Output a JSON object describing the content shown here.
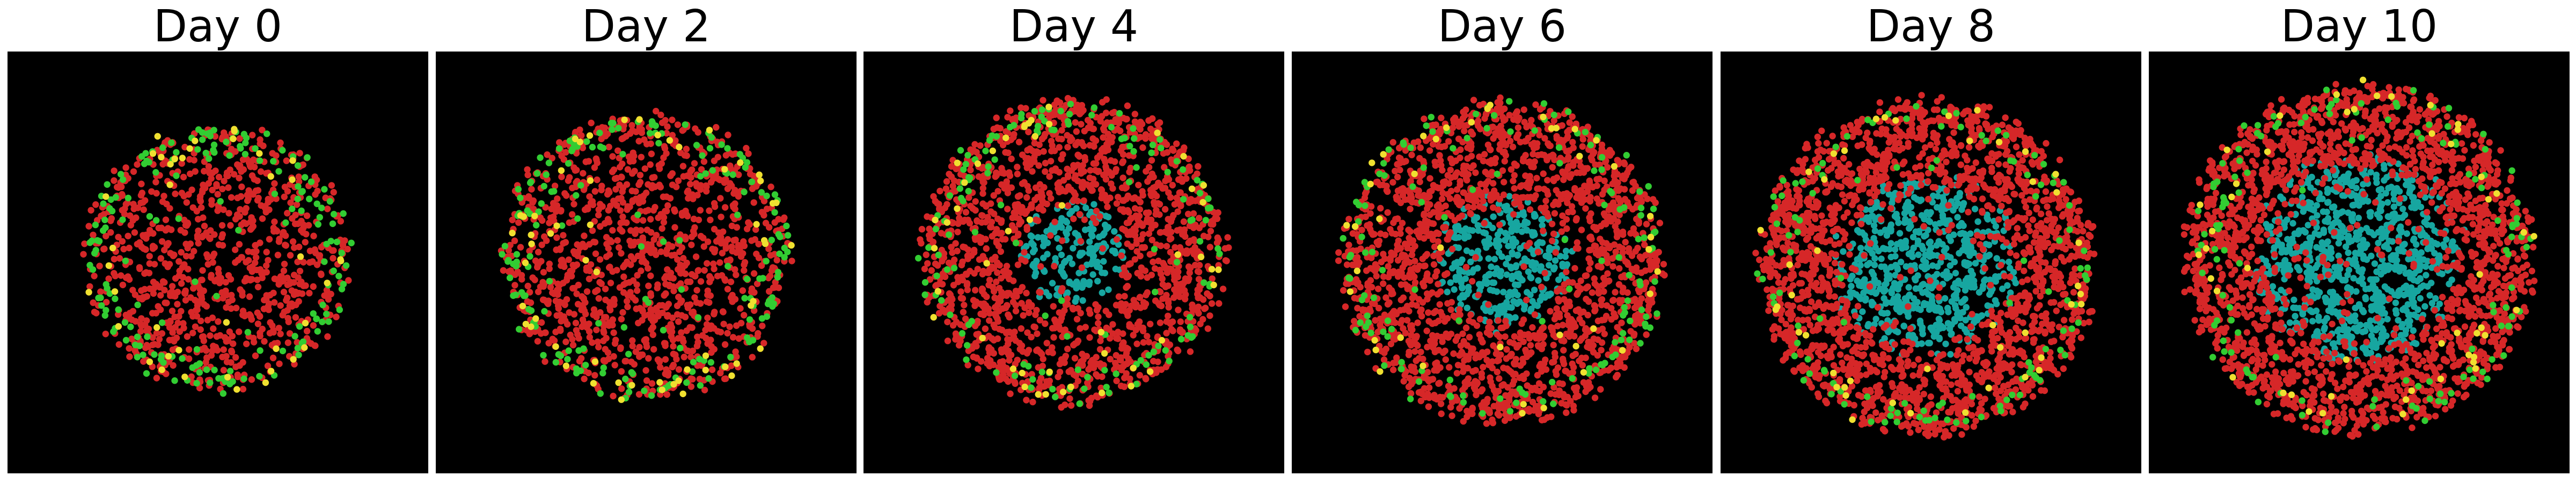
{
  "chart_data": {
    "type": "scatter",
    "panel_titles": [
      "Day 0",
      "Day 2",
      "Day 4",
      "Day 6",
      "Day 8",
      "Day 10"
    ],
    "background_color": "#000000",
    "grid": false,
    "axes_visible": false,
    "cell_colors": {
      "red": "#d62728",
      "cyan": "#17a6a0",
      "green": "#32cd32",
      "yellow": "#f0e030"
    },
    "panels": [
      {
        "title": "Day 0",
        "spheroid_radius": 0.61,
        "center_x": 0.0,
        "center_y": 0.02,
        "necrotic_core_radius": 0.0,
        "total_cells": 1100,
        "fraction_green": 0.1,
        "fraction_yellow": 0.02
      },
      {
        "title": "Day 2",
        "spheroid_radius": 0.66,
        "center_x": 0.0,
        "center_y": 0.03,
        "necrotic_core_radius": 0.0,
        "total_cells": 1400,
        "fraction_green": 0.08,
        "fraction_yellow": 0.02
      },
      {
        "title": "Day 4",
        "spheroid_radius": 0.7,
        "center_x": 0.0,
        "center_y": 0.05,
        "necrotic_core_radius": 0.24,
        "total_cells": 1900,
        "fraction_green": 0.05,
        "fraction_yellow": 0.015
      },
      {
        "title": "Day 6",
        "spheroid_radius": 0.74,
        "center_x": 0.0,
        "center_y": 0.0,
        "necrotic_core_radius": 0.3,
        "total_cells": 2300,
        "fraction_green": 0.04,
        "fraction_yellow": 0.01
      },
      {
        "title": "Day 8",
        "spheroid_radius": 0.77,
        "center_x": -0.02,
        "center_y": -0.02,
        "necrotic_core_radius": 0.4,
        "total_cells": 2700,
        "fraction_green": 0.03,
        "fraction_yellow": 0.01
      },
      {
        "title": "Day 10",
        "spheroid_radius": 0.8,
        "center_x": 0.0,
        "center_y": 0.02,
        "necrotic_core_radius": 0.46,
        "total_cells": 3000,
        "fraction_green": 0.03,
        "fraction_yellow": 0.01
      }
    ]
  }
}
